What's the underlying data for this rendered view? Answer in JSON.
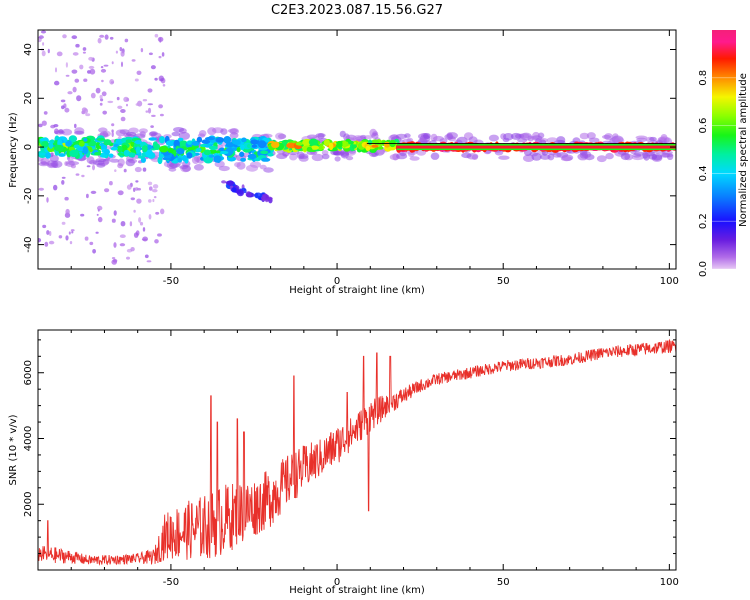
{
  "figure": {
    "title": "C2E3.2023.087.15.56.G27"
  },
  "chart_data": [
    {
      "type": "heatmap",
      "title": "",
      "xlabel": "Height of straight line (km)",
      "ylabel": "Frequency (Hz)",
      "xlim": [
        -90,
        102
      ],
      "ylim": [
        -50,
        48
      ],
      "xticks": [
        -50,
        0,
        50,
        100
      ],
      "yticks": [
        -40,
        -20,
        0,
        20,
        40
      ],
      "colorbar": {
        "label": "Normalized spectral amplitude",
        "ticks": [
          0.0,
          0.2,
          0.4,
          0.6,
          0.8
        ],
        "range": [
          0,
          1
        ],
        "colormap": "gist_ncar-like (purple-blue-cyan-green-yellow-red-magenta)"
      },
      "ridge": [
        {
          "x_start": -90,
          "x_end": -60,
          "freq_center": 0,
          "freq_spread": 3.5,
          "amplitude": [
            0.35,
            0.7
          ],
          "scatter_upto_freq": 48
        },
        {
          "x_start": -60,
          "x_end": -20,
          "freq_center": -1,
          "freq_spread": 4.5,
          "amplitude": [
            0.3,
            0.6
          ]
        },
        {
          "x_start": -20,
          "x_end": 18,
          "freq_center": 0.5,
          "freq_spread": 1.5,
          "amplitude": [
            0.5,
            0.85
          ]
        },
        {
          "x_start": 18,
          "x_end": 102,
          "freq_center": 0,
          "freq_spread": 0.8,
          "amplitude": [
            0.85,
            1.0
          ]
        }
      ],
      "side_blob": {
        "x_start": -35,
        "x_end": -20,
        "freq_from": -15,
        "freq_to": -21
      }
    },
    {
      "type": "line",
      "title": "",
      "xlabel": "Height of straight line (km)",
      "ylabel": "SNR (10 * v/v)",
      "xlim": [
        -90,
        102
      ],
      "ylim": [
        0,
        7300
      ],
      "xticks": [
        -50,
        0,
        50,
        100
      ],
      "yticks": [
        2000,
        4000,
        6000
      ],
      "series": [
        {
          "color": "#e8302a",
          "x": [
            -90,
            -85,
            -80,
            -75,
            -70,
            -65,
            -60,
            -55,
            -52,
            -50,
            -45,
            -40,
            -35,
            -30,
            -25,
            -20,
            -15,
            -10,
            -5,
            0,
            5,
            10,
            15,
            20,
            25,
            30,
            40,
            50,
            60,
            70,
            80,
            90,
            100,
            102
          ],
          "y": [
            500,
            450,
            400,
            300,
            300,
            320,
            350,
            400,
            1000,
            1100,
            1200,
            1300,
            1500,
            1700,
            1900,
            2200,
            2700,
            3100,
            3400,
            3800,
            4200,
            4700,
            5000,
            5300,
            5600,
            5800,
            6000,
            6200,
            6300,
            6400,
            6600,
            6700,
            6800,
            6800
          ],
          "noise": [
            250,
            250,
            200,
            150,
            150,
            150,
            150,
            250,
            700,
            800,
            900,
            1000,
            1100,
            1000,
            900,
            900,
            800,
            700,
            600,
            600,
            500,
            500,
            350,
            250,
            200,
            180,
            180,
            180,
            180,
            180,
            180,
            200,
            200,
            200
          ],
          "spikes": [
            {
              "x": -87,
              "y": 1500
            },
            {
              "x": -38,
              "y": 5300
            },
            {
              "x": -36,
              "y": 4500
            },
            {
              "x": -30,
              "y": 4600
            },
            {
              "x": -28,
              "y": 4200
            },
            {
              "x": -13,
              "y": 5900
            },
            {
              "x": 3,
              "y": 5400
            },
            {
              "x": 8,
              "y": 6500
            },
            {
              "x": 9.5,
              "y": 1800
            },
            {
              "x": 12,
              "y": 6600
            },
            {
              "x": 16,
              "y": 6500
            }
          ]
        }
      ]
    }
  ]
}
